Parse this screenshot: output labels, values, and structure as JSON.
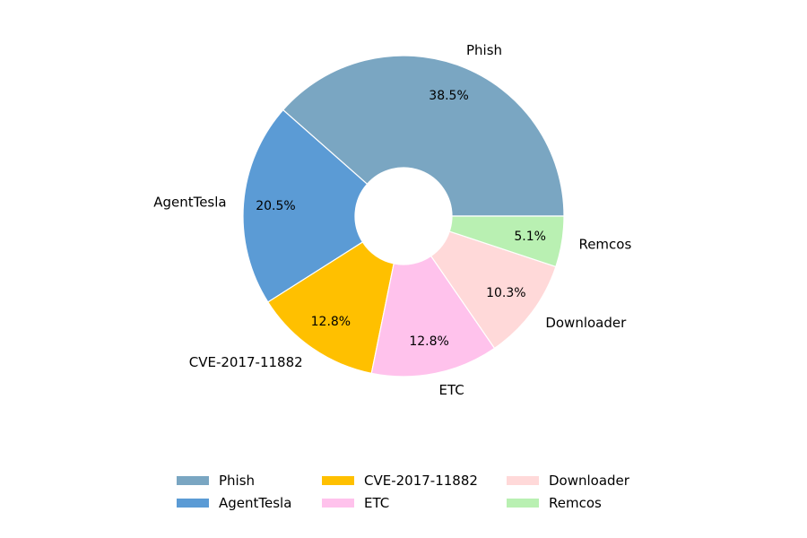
{
  "chart_data": {
    "type": "pie",
    "donut": true,
    "start_angle_deg": 0,
    "direction": "counterclockwise",
    "legend_position": "bottom",
    "legend_columns": 3,
    "labels": [
      "Phish",
      "AgentTesla",
      "CVE-2017-11882",
      "ETC",
      "Downloader",
      "Remcos"
    ],
    "values": [
      38.5,
      20.5,
      12.8,
      12.8,
      10.3,
      5.1
    ],
    "value_labels": [
      "38.5%",
      "20.5%",
      "12.8%",
      "12.8%",
      "10.3%",
      "5.1%"
    ],
    "colors": [
      "#7aa6c2",
      "#5b9bd5",
      "#ffc000",
      "#ffc2ec",
      "#ffd9d9",
      "#b9f0b2"
    ]
  }
}
